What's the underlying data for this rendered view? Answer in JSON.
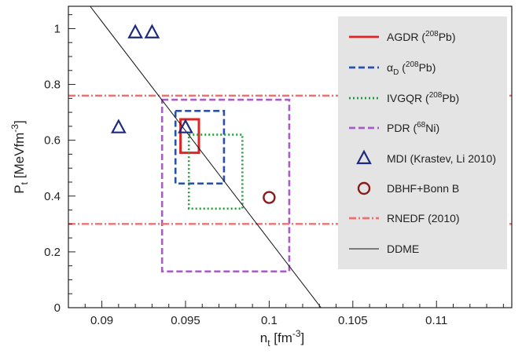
{
  "chart_data": {
    "type": "scatter",
    "xlabel": {
      "base": "n",
      "sub": "t",
      "unit": "[fm",
      "unitsup": "-3",
      "close": "]"
    },
    "ylabel": {
      "base": "P",
      "sub": "t",
      "unit": "[MeVfm",
      "unitsup": "-3",
      "close": "]"
    },
    "xlim": [
      0.088,
      0.1145
    ],
    "ylim": [
      0,
      1.08
    ],
    "xticks": [
      0.09,
      0.095,
      0.1,
      0.105,
      0.11
    ],
    "xtick_labels": [
      "0.09",
      "0.095",
      "0.1",
      "0.105",
      "0.11"
    ],
    "yticks": [
      0,
      0.2,
      0.4,
      0.6,
      0.8,
      1
    ],
    "ytick_labels": [
      "0",
      "0.2",
      "0.4",
      "0.6",
      "0.8",
      "1"
    ],
    "grid": false,
    "legend_position": "right",
    "series": [
      {
        "name": "AGDR",
        "nucleus_mass": "208",
        "nucleus_elem": "Pb",
        "kind": "box",
        "color": "#e02424",
        "dash": "solid",
        "x": [
          0.0947,
          0.0958
        ],
        "y": [
          0.555,
          0.675
        ]
      },
      {
        "name": "α",
        "name_sub": "D",
        "nucleus_mass": "208",
        "nucleus_elem": "Pb",
        "kind": "box",
        "color": "#2a50a8",
        "dash": "dashed",
        "x": [
          0.0944,
          0.0973
        ],
        "y": [
          0.445,
          0.705
        ]
      },
      {
        "name": "IVGQR",
        "nucleus_mass": "208",
        "nucleus_elem": "Pb",
        "kind": "box",
        "color": "#1e9c3a",
        "dash": "dotted",
        "x": [
          0.0952,
          0.0984
        ],
        "y": [
          0.355,
          0.62
        ]
      },
      {
        "name": "PDR",
        "nucleus_mass": "68",
        "nucleus_elem": "Ni",
        "kind": "box",
        "color": "#a85cc8",
        "dash": "dashed",
        "x": [
          0.0936,
          0.1012
        ],
        "y": [
          0.13,
          0.745
        ]
      },
      {
        "name": "MDI (Krastev, Li 2010)",
        "kind": "triangles",
        "color": "#1c2a80",
        "points": [
          [
            0.091,
            0.645
          ],
          [
            0.092,
            0.985
          ],
          [
            0.093,
            0.985
          ],
          [
            0.095,
            0.645
          ]
        ]
      },
      {
        "name": "DBHF+Bonn B",
        "kind": "circles",
        "color": "#8b1a1a",
        "points": [
          [
            0.1,
            0.395
          ]
        ]
      },
      {
        "name": "RNEDF (2010)",
        "kind": "hband",
        "color": "#f07070",
        "dash": "dashdot",
        "y": [
          0.3,
          0.76
        ]
      },
      {
        "name": "DDME",
        "kind": "line",
        "color": "#111111",
        "dash": "solid",
        "points": [
          [
            0.0893,
            1.08
          ],
          [
            0.1031,
            0
          ]
        ]
      }
    ]
  }
}
